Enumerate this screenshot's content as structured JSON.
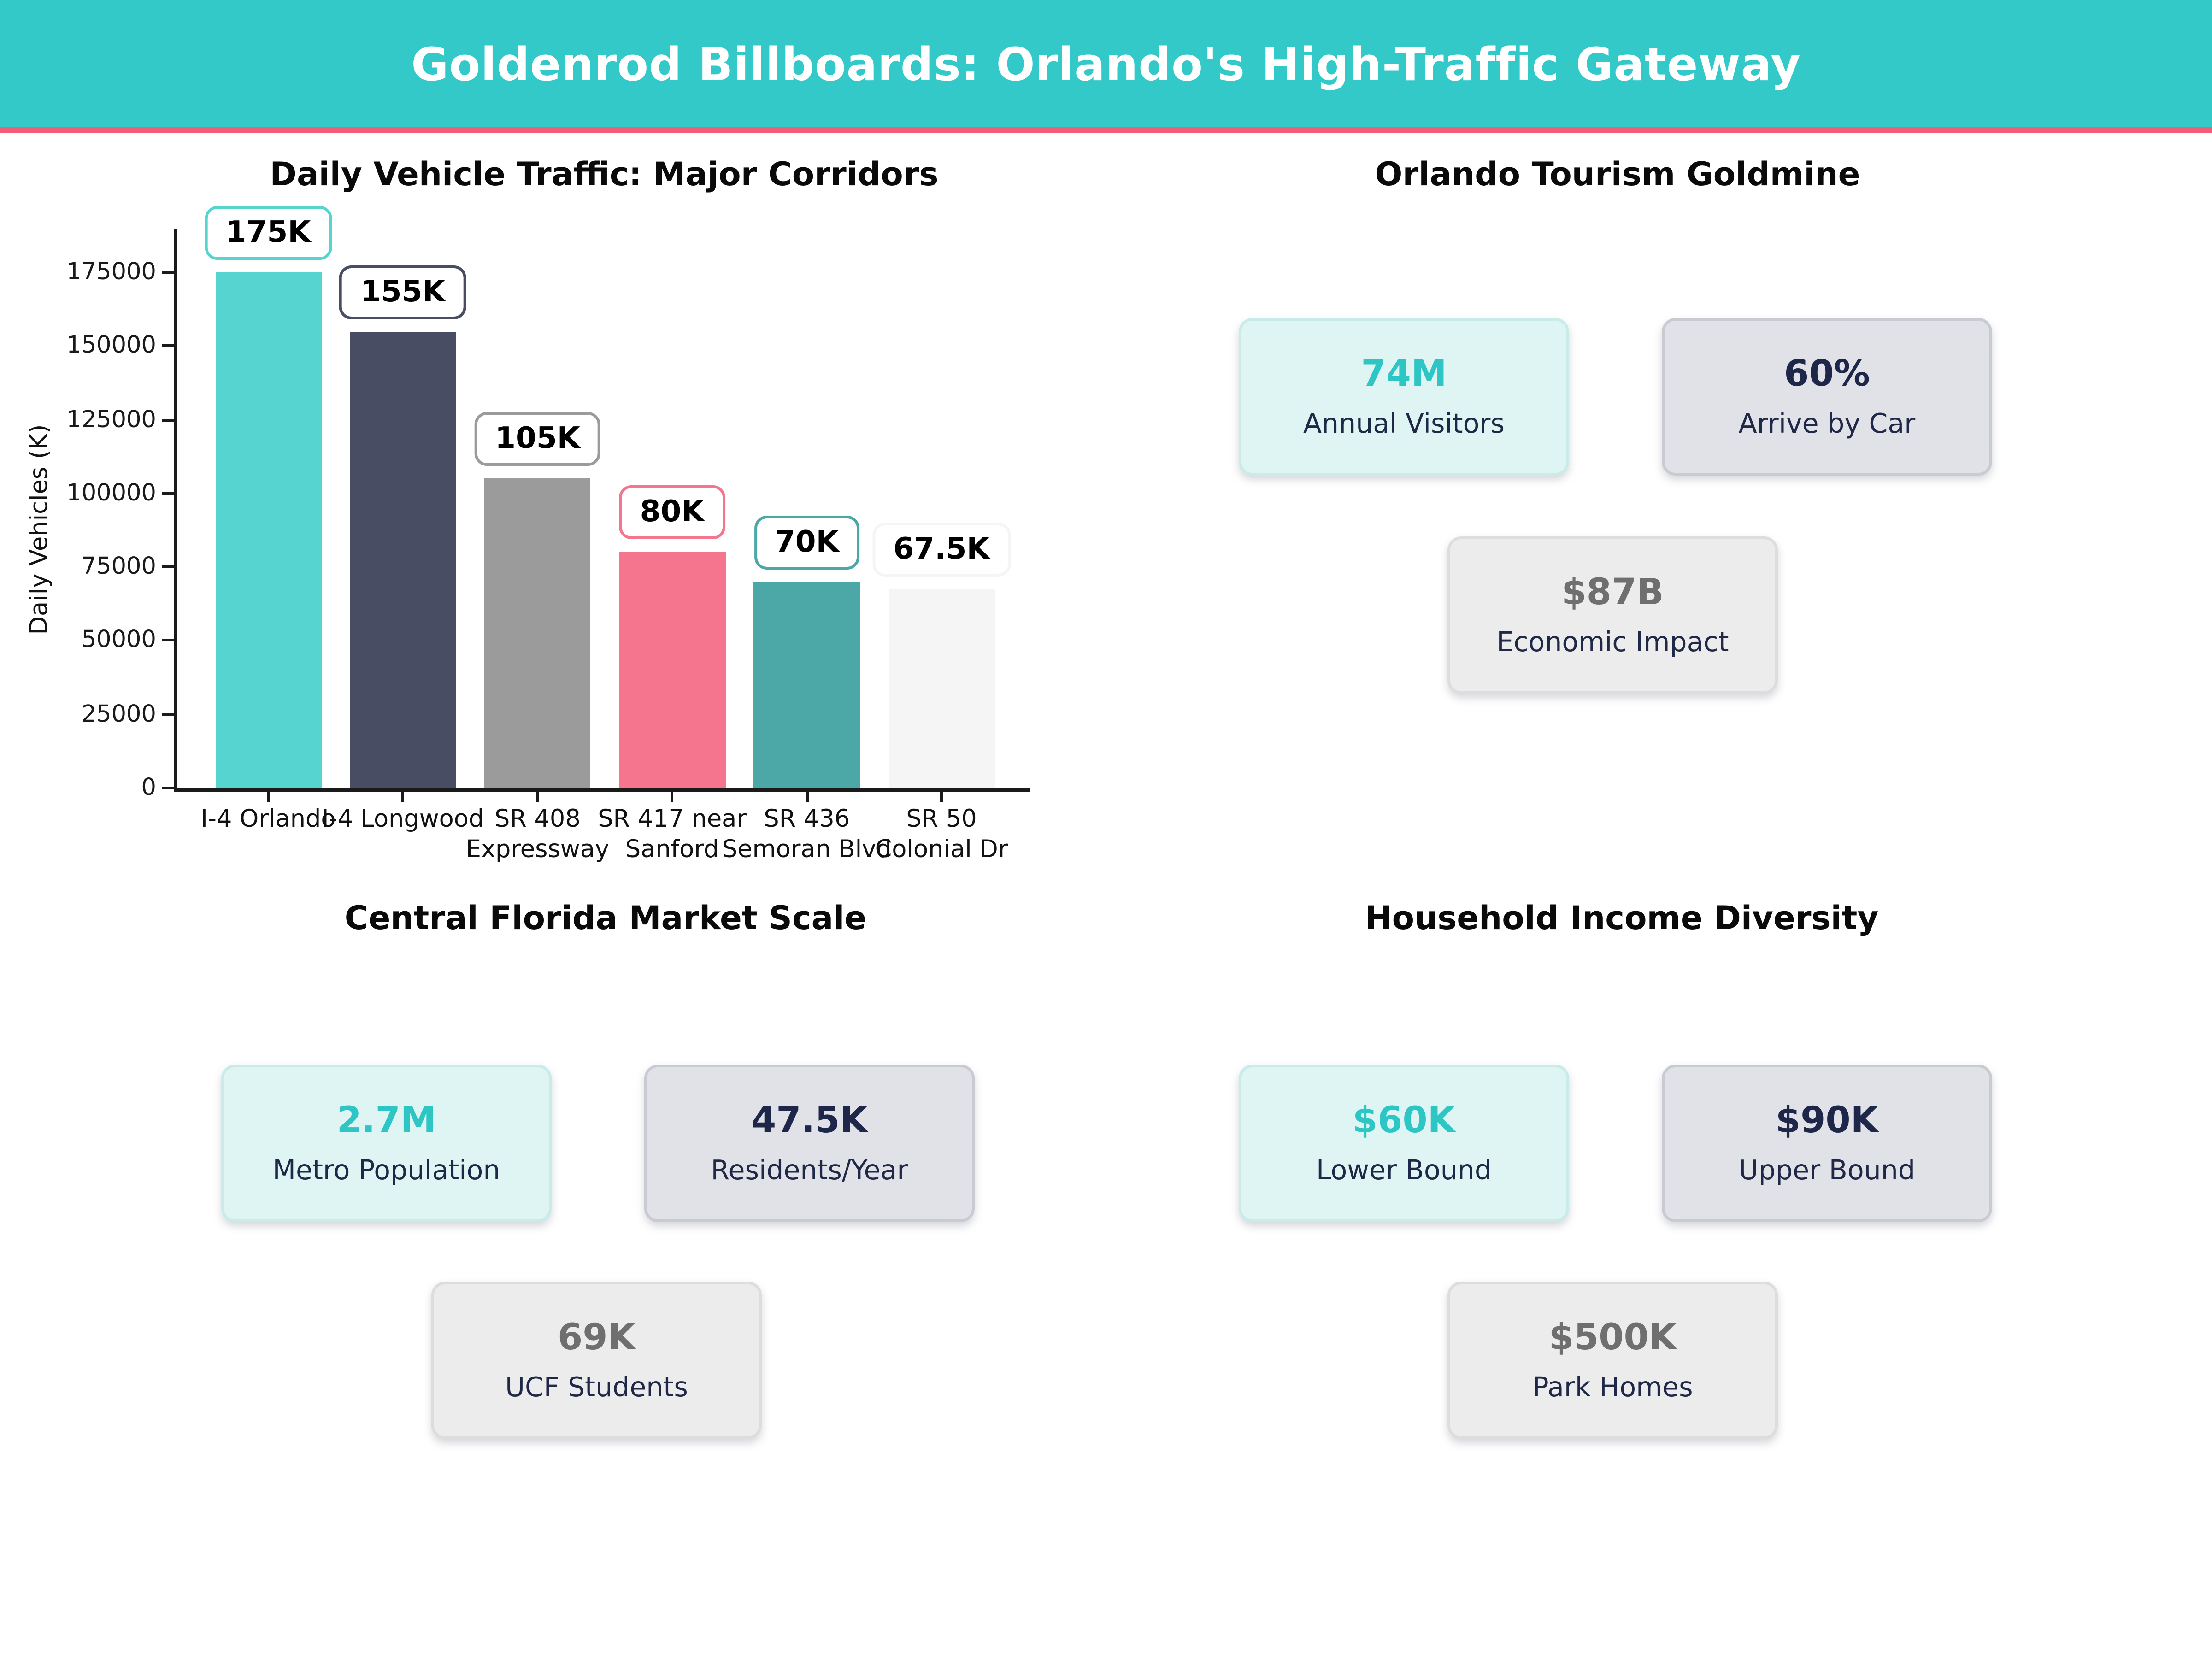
{
  "colors": {
    "header_bg": "#34C9C9",
    "header_accent": "#F05D79",
    "title_text": "#0A0A0A",
    "axis_text": "#1A1A1A",
    "label_navy": "#1F2947"
  },
  "header": {
    "title": "Goldenrod Billboards: Orlando's High-Traffic Gateway"
  },
  "chart_data": {
    "type": "bar",
    "title": "Daily Vehicle Traffic: Major Corridors",
    "xlabel": "",
    "ylabel": "Daily Vehicles (K)",
    "categories": [
      "I-4 Orlando",
      "I-4 Longwood",
      "SR 408\nExpressway",
      "SR 417 near\nSanford",
      "SR 436\nSemoran Blvd",
      "SR 50\nColonial Dr"
    ],
    "values": [
      175000,
      155000,
      105000,
      80000,
      70000,
      67500
    ],
    "value_labels": [
      "175K",
      "155K",
      "105K",
      "80K",
      "70K",
      "67.5K"
    ],
    "bar_colors": [
      "#55D4D0",
      "#484D64",
      "#9B9B9B",
      "#F4758D",
      "#4BA8A6",
      "#F5F5F5"
    ],
    "yticks": [
      0,
      25000,
      50000,
      75000,
      100000,
      125000,
      150000,
      175000
    ],
    "ylim": [
      0,
      175000
    ],
    "grid": false,
    "legend": false
  },
  "sections": {
    "tourism": {
      "title": "Orlando Tourism Goldmine",
      "cards": [
        {
          "value": "74M",
          "label": "Annual Visitors",
          "variant": "mint"
        },
        {
          "value": "60%",
          "label": "Arrive by Car",
          "variant": "slate"
        },
        {
          "value": "$87B",
          "label": "Economic Impact",
          "variant": "gray"
        }
      ]
    },
    "market": {
      "title": "Central Florida Market Scale",
      "cards": [
        {
          "value": "2.7M",
          "label": "Metro Population",
          "variant": "mint"
        },
        {
          "value": "47.5K",
          "label": "Residents/Year",
          "variant": "slate"
        },
        {
          "value": "69K",
          "label": "UCF Students",
          "variant": "gray"
        }
      ]
    },
    "income": {
      "title": "Household Income Diversity",
      "cards": [
        {
          "value": "$60K",
          "label": "Lower Bound",
          "variant": "mint"
        },
        {
          "value": "$90K",
          "label": "Upper Bound",
          "variant": "slate"
        },
        {
          "value": "$500K",
          "label": "Park Homes",
          "variant": "gray"
        }
      ]
    }
  },
  "card_variants": {
    "mint": {
      "bg": "#DFF5F3",
      "border": "#C8ECE9",
      "value_color": "#2EC6C4"
    },
    "slate": {
      "bg": "#E1E2E7",
      "border": "#C9CBD3",
      "value_color": "#1E2749"
    },
    "gray": {
      "bg": "#ECECEC",
      "border": "#DDDDDD",
      "value_color": "#6F6F6F"
    }
  }
}
